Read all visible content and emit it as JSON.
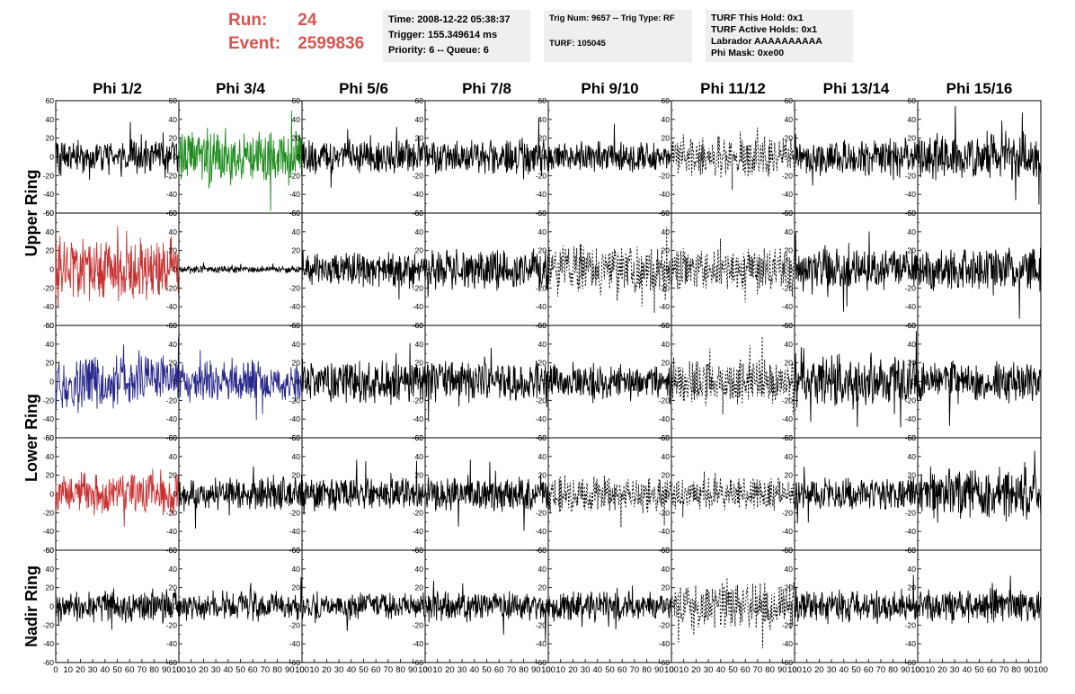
{
  "header": {
    "run_label": "Run:",
    "run_value": "24",
    "event_label": "Event:",
    "event_value": "2599836",
    "time_box": [
      "Time: 2008-12-22 05:38:37",
      "Trigger: 155.349614 ms",
      "Priority: 6 -- Queue: 6"
    ],
    "trig_box": [
      "Trig Num: 9657 -- Trig Type: RF",
      "",
      "TURF: 105045"
    ],
    "turf_box": [
      "TURF This Hold: 0x1",
      "TURF Active Holds: 0x1",
      "Labrador AAAAAAAAAA",
      "Phi Mask: 0xe00"
    ]
  },
  "colors": {
    "accent_text": "#d9534f",
    "info_bg": "#efefef",
    "trace_default": "#000000",
    "trace_green": "#1e8c1e",
    "trace_red": "#c83232",
    "trace_blue": "#28288c"
  },
  "chart_data": {
    "type": "line",
    "layout": "5x8 grid of waveform panels",
    "columns": [
      "Phi 1/2",
      "Phi 3/4",
      "Phi 5/6",
      "Phi 7/8",
      "Phi 9/10",
      "Phi 11/12",
      "Phi 13/14",
      "Phi 15/16"
    ],
    "ring_labels": [
      "Upper Ring",
      "Lower Ring",
      "Nadir Ring"
    ],
    "x_range": [
      0,
      100
    ],
    "y_range": [
      -60,
      60
    ],
    "x_ticks": [
      0,
      10,
      20,
      30,
      40,
      50,
      60,
      70,
      80,
      90,
      100
    ],
    "y_ticks": [
      -60,
      -40,
      -20,
      0,
      20,
      40,
      60
    ],
    "panels": [
      [
        {
          "color": "black",
          "dashed": false,
          "amp": 9
        },
        {
          "color": "green",
          "dashed": false,
          "amp": 15
        },
        {
          "color": "black",
          "dashed": false,
          "amp": 9
        },
        {
          "color": "black",
          "dashed": false,
          "amp": 9
        },
        {
          "color": "black",
          "dashed": false,
          "amp": 8
        },
        {
          "color": "black",
          "dashed": true,
          "amp": 11
        },
        {
          "color": "black",
          "dashed": false,
          "amp": 10
        },
        {
          "color": "black",
          "dashed": false,
          "amp": 13
        }
      ],
      [
        {
          "color": "red",
          "dashed": false,
          "amp": 17
        },
        {
          "color": "black",
          "dashed": false,
          "amp": 2
        },
        {
          "color": "black",
          "dashed": false,
          "amp": 10
        },
        {
          "color": "black",
          "dashed": false,
          "amp": 11
        },
        {
          "color": "black",
          "dashed": true,
          "amp": 13
        },
        {
          "color": "black",
          "dashed": true,
          "amp": 12
        },
        {
          "color": "black",
          "dashed": false,
          "amp": 11
        },
        {
          "color": "black",
          "dashed": false,
          "amp": 12
        }
      ],
      [
        {
          "color": "blue",
          "dashed": false,
          "amp": 14
        },
        {
          "color": "blue",
          "dashed": false,
          "amp": 11
        },
        {
          "color": "black",
          "dashed": false,
          "amp": 12
        },
        {
          "color": "black",
          "dashed": false,
          "amp": 11
        },
        {
          "color": "black",
          "dashed": false,
          "amp": 9
        },
        {
          "color": "black",
          "dashed": true,
          "amp": 12
        },
        {
          "color": "black",
          "dashed": false,
          "amp": 14
        },
        {
          "color": "black",
          "dashed": false,
          "amp": 11
        }
      ],
      [
        {
          "color": "red",
          "dashed": false,
          "amp": 11
        },
        {
          "color": "black",
          "dashed": false,
          "amp": 9
        },
        {
          "color": "black",
          "dashed": false,
          "amp": 9
        },
        {
          "color": "black",
          "dashed": false,
          "amp": 9
        },
        {
          "color": "black",
          "dashed": true,
          "amp": 10
        },
        {
          "color": "black",
          "dashed": true,
          "amp": 9
        },
        {
          "color": "black",
          "dashed": false,
          "amp": 9
        },
        {
          "color": "black",
          "dashed": false,
          "amp": 14
        }
      ],
      [
        {
          "color": "black",
          "dashed": false,
          "amp": 9
        },
        {
          "color": "black",
          "dashed": false,
          "amp": 8
        },
        {
          "color": "black",
          "dashed": false,
          "amp": 7
        },
        {
          "color": "black",
          "dashed": false,
          "amp": 8
        },
        {
          "color": "black",
          "dashed": false,
          "amp": 8
        },
        {
          "color": "black",
          "dashed": true,
          "amp": 13
        },
        {
          "color": "black",
          "dashed": false,
          "amp": 9
        },
        {
          "color": "black",
          "dashed": false,
          "amp": 9
        }
      ]
    ]
  }
}
